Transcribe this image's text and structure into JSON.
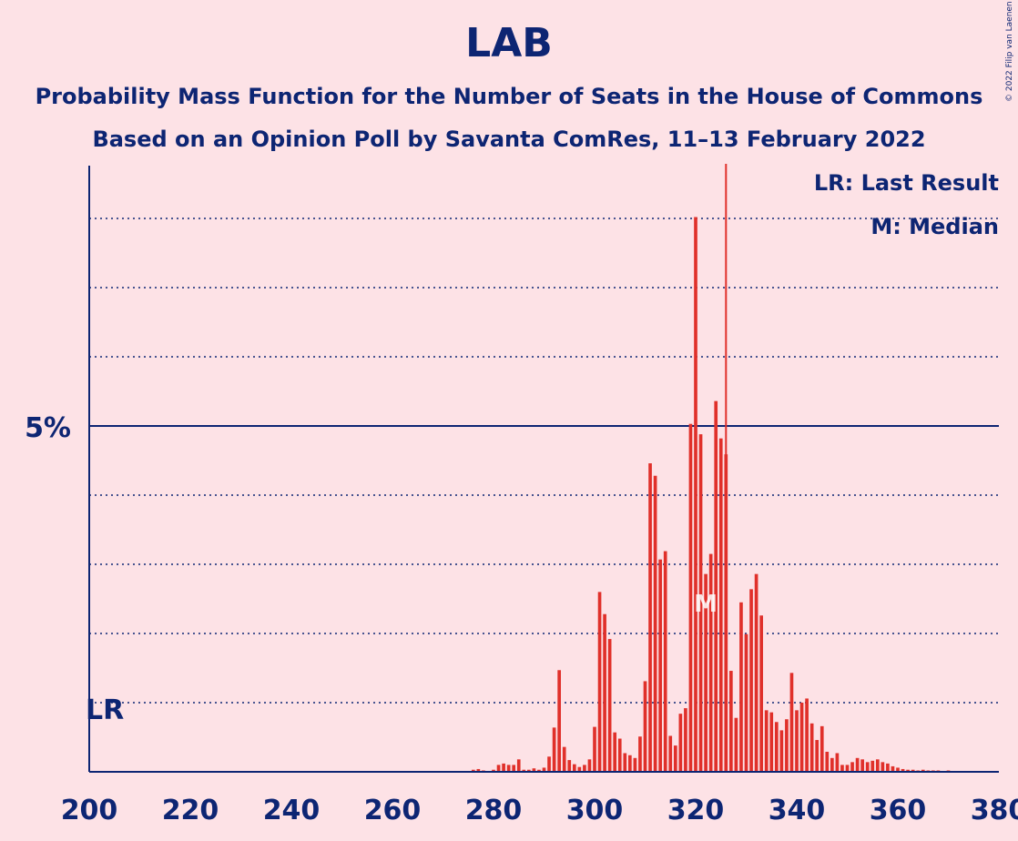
{
  "title": "LAB",
  "subtitle1": "Probability Mass Function for the Number of Seats in the House of Commons",
  "subtitle2": "Based on an Opinion Poll by Savanta ComRes, 11–13 February 2022",
  "copyright": "© 2022 Filip van Laenen",
  "legend": {
    "lr": "LR: Last Result",
    "median": "M: Median"
  },
  "labels": {
    "lr": "LR",
    "median": "M",
    "five_pct": "5%"
  },
  "colors": {
    "background": "#fde2e6",
    "bar": "#e0302a",
    "axis": "#0d2573"
  },
  "chart_data": {
    "type": "bar",
    "xlim": [
      200,
      380
    ],
    "ylim": [
      0,
      8.8
    ],
    "x_ticks": [
      200,
      220,
      240,
      260,
      280,
      300,
      320,
      340,
      360,
      380
    ],
    "y_major": [
      {
        "value": 5,
        "label": "5%"
      }
    ],
    "y_minor_gridlines": [
      1,
      2,
      3,
      4,
      6,
      7,
      8
    ],
    "last_result": 202,
    "median": 322,
    "threshold_line": 326,
    "series": [
      {
        "x": [
          276,
          277,
          278,
          279,
          280,
          281,
          282,
          283,
          284,
          285,
          286,
          287,
          288,
          289,
          290,
          291,
          292,
          293,
          294,
          295,
          296,
          297,
          298,
          299,
          300,
          301,
          302,
          303,
          304,
          305,
          306,
          307,
          308,
          309,
          310,
          311,
          312,
          313,
          314,
          315,
          316,
          317,
          318,
          319,
          320,
          321,
          322,
          323,
          324,
          325,
          326,
          327,
          328,
          329,
          330,
          331,
          332,
          333,
          334,
          335,
          336,
          337,
          338,
          339,
          340,
          341,
          342,
          343,
          344,
          345,
          346,
          347,
          348,
          349,
          350,
          351,
          352,
          353,
          354,
          355,
          356,
          357,
          358,
          359,
          360,
          361,
          362,
          363,
          364,
          365,
          366,
          367,
          368,
          369,
          370,
          371,
          372,
          373
        ],
        "values": [
          0.03,
          0.04,
          0.02,
          0.01,
          0.03,
          0.1,
          0.12,
          0.1,
          0.1,
          0.18,
          0.03,
          0.03,
          0.05,
          0.03,
          0.06,
          0.22,
          0.64,
          1.47,
          0.36,
          0.17,
          0.11,
          0.07,
          0.1,
          0.18,
          0.65,
          2.6,
          2.28,
          1.92,
          0.57,
          0.48,
          0.27,
          0.24,
          0.2,
          0.51,
          1.31,
          4.46,
          4.28,
          3.07,
          3.19,
          0.52,
          0.38,
          0.84,
          0.92,
          5.03,
          8.02,
          4.88,
          2.86,
          3.15,
          5.36,
          4.82,
          4.59,
          1.46,
          0.78,
          2.45,
          1.99,
          2.64,
          2.86,
          2.26,
          0.89,
          0.86,
          0.72,
          0.6,
          0.76,
          1.43,
          0.89,
          1.0,
          1.06,
          0.7,
          0.46,
          0.66,
          0.29,
          0.2,
          0.27,
          0.1,
          0.1,
          0.14,
          0.2,
          0.18,
          0.14,
          0.16,
          0.18,
          0.14,
          0.12,
          0.08,
          0.06,
          0.04,
          0.03,
          0.03,
          0.02,
          0.03,
          0.02,
          0.02,
          0.02,
          0.01,
          0.02,
          0.01,
          0.01,
          0.01
        ]
      }
    ]
  }
}
